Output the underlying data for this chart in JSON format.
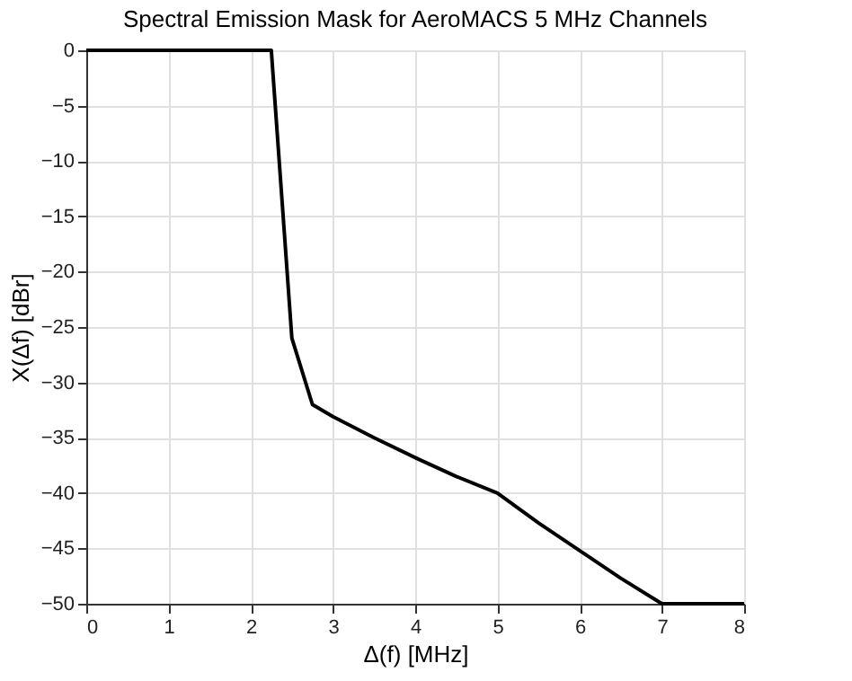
{
  "chart_data": {
    "type": "line",
    "title": "Spectral Emission Mask for AeroMACS 5 MHz Channels",
    "xlabel": "Δ(f) [MHz]",
    "ylabel": "X(Δf) [dBr]",
    "x": [
      0,
      2.25,
      2.5,
      2.75,
      3,
      3.5,
      4,
      4.5,
      5,
      5.5,
      6,
      6.5,
      7,
      8
    ],
    "series": [
      {
        "color": "#000000",
        "values": [
          0,
          0,
          -26,
          -32,
          -33.1,
          -35,
          -36.8,
          -38.5,
          -40,
          -42.7,
          -45.2,
          -47.7,
          -50,
          -50
        ]
      }
    ],
    "xlim": [
      0,
      8
    ],
    "xticks": [
      0,
      1,
      2,
      3,
      4,
      5,
      6,
      7,
      8
    ],
    "ylim": [
      -50,
      0
    ],
    "yticks": [
      -50,
      -45,
      -40,
      -35,
      -30,
      -25,
      -20,
      -15,
      -10,
      -5,
      0
    ],
    "grid": true,
    "marker": "none",
    "line_style": "solid"
  }
}
